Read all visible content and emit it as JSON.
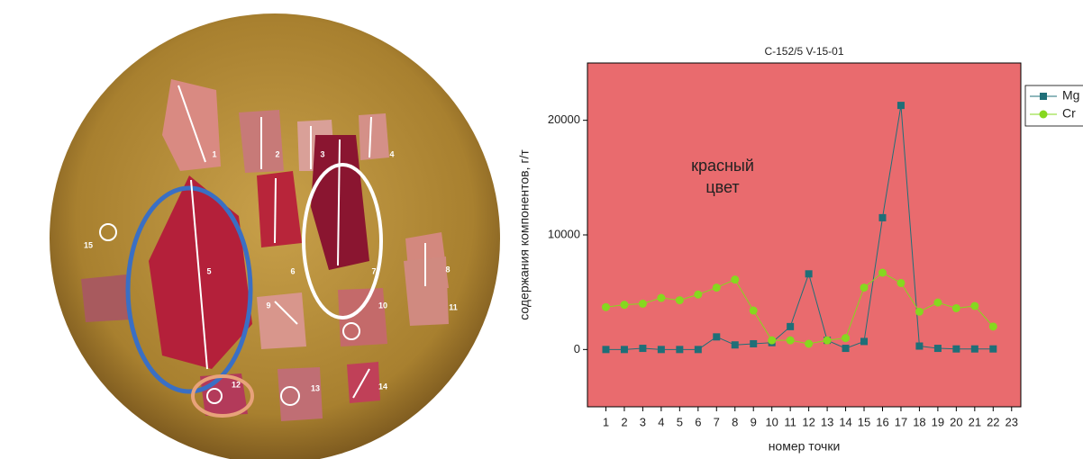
{
  "photo_labels": [
    "1",
    "2",
    "3",
    "4",
    "5",
    "6",
    "7",
    "8",
    "9",
    "10",
    "11",
    "12",
    "13",
    "14",
    "15"
  ],
  "chart_data": {
    "type": "line",
    "title": "C-152/5 V-15-01",
    "x_label": "номер точки",
    "y_label": "содержания компонентов, г/т",
    "annotation": [
      "красный",
      "цвет"
    ],
    "x": [
      1,
      2,
      3,
      4,
      5,
      6,
      7,
      8,
      9,
      10,
      11,
      12,
      13,
      14,
      15,
      16,
      17,
      18,
      19,
      20,
      21,
      22
    ],
    "series": [
      {
        "name": "Mg",
        "color": "#1f6f78",
        "marker": "square",
        "values": [
          0,
          0,
          100,
          0,
          0,
          0,
          1100,
          400,
          500,
          600,
          2000,
          6600,
          800,
          100,
          700,
          11500,
          21300,
          300,
          100,
          50,
          50,
          50
        ]
      },
      {
        "name": "Cr",
        "color": "#86d81f",
        "marker": "circle",
        "values": [
          3700,
          3900,
          4000,
          4500,
          4300,
          4800,
          5400,
          6100,
          3400,
          800,
          800,
          500,
          800,
          1000,
          5400,
          6700,
          5800,
          3300,
          4100,
          3600,
          3800,
          2000
        ]
      }
    ],
    "xlim": [
      0,
      23.5
    ],
    "xticks": [
      1,
      2,
      3,
      4,
      5,
      6,
      7,
      8,
      9,
      10,
      11,
      12,
      13,
      14,
      15,
      16,
      17,
      18,
      19,
      20,
      21,
      22,
      23
    ],
    "ylim": [
      -5000,
      25000
    ],
    "yticks": [
      0,
      10000,
      20000
    ],
    "background": "#e96b6e",
    "legend": "right"
  }
}
